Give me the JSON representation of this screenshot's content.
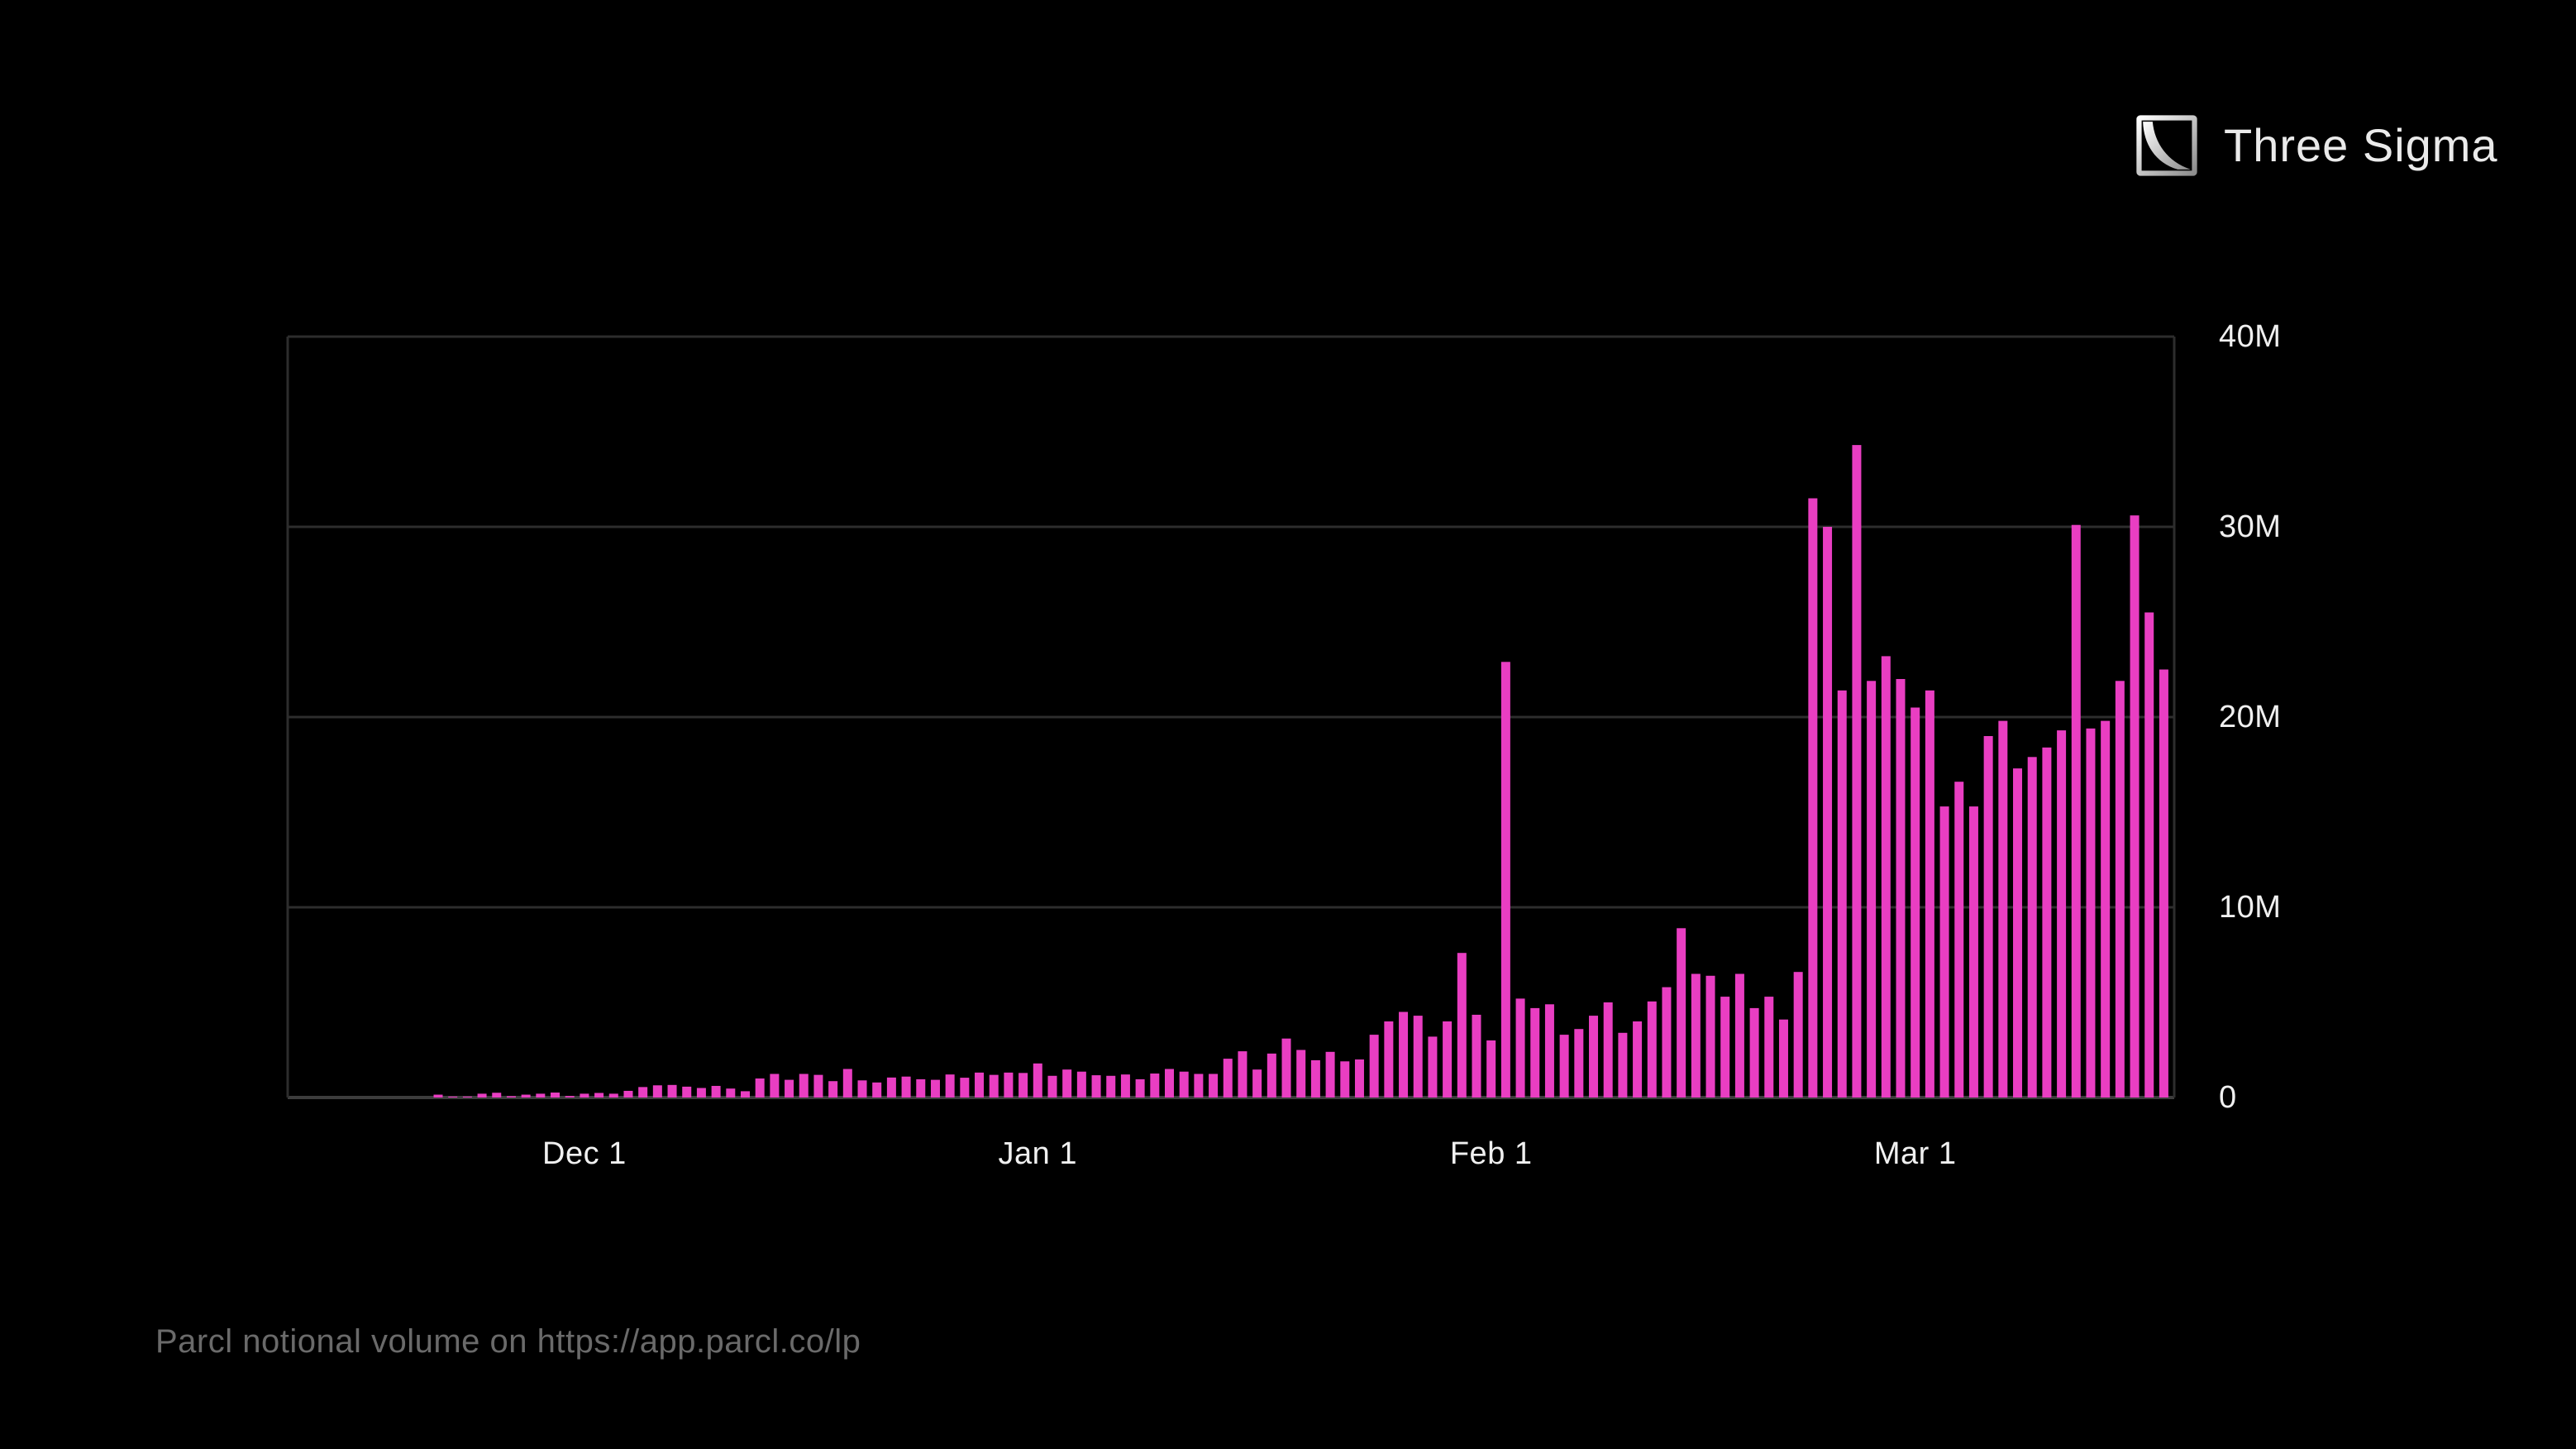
{
  "brand": {
    "name": "Three Sigma",
    "icon": "decay-curve-square-icon"
  },
  "caption": "Parcl notional volume on https://app.parcl.co/lp",
  "colors": {
    "background": "#000000",
    "bar": "#e93ec2",
    "grid": "#2d2d2d",
    "baseline": "#3c3c3c",
    "axis_label": "#f0f0f0",
    "caption_text": "#6a6a6a",
    "brand_text": "#eaeaea"
  },
  "chart_data": {
    "type": "bar",
    "title": "",
    "xlabel": "",
    "ylabel": "",
    "unit": "M",
    "ylim": [
      0,
      40
    ],
    "grid": "horizontal",
    "legend": "none",
    "y_ticks": [
      {
        "label": "40M",
        "value": 40
      },
      {
        "label": "30M",
        "value": 30
      },
      {
        "label": "20M",
        "value": 20
      },
      {
        "label": "10M",
        "value": 10
      },
      {
        "label": "0",
        "value": 0
      }
    ],
    "x_ticks": [
      {
        "label": "Dec 1",
        "index": 10
      },
      {
        "label": "Jan 1",
        "index": 41
      },
      {
        "label": "Feb 1",
        "index": 72
      },
      {
        "label": "Mar 1",
        "index": 101
      }
    ],
    "categories": [
      "Nov 21",
      "Nov 22",
      "Nov 23",
      "Nov 24",
      "Nov 25",
      "Nov 26",
      "Nov 27",
      "Nov 28",
      "Nov 29",
      "Nov 30",
      "Dec 1",
      "Dec 2",
      "Dec 3",
      "Dec 4",
      "Dec 5",
      "Dec 6",
      "Dec 7",
      "Dec 8",
      "Dec 9",
      "Dec 10",
      "Dec 11",
      "Dec 12",
      "Dec 13",
      "Dec 14",
      "Dec 15",
      "Dec 16",
      "Dec 17",
      "Dec 18",
      "Dec 19",
      "Dec 20",
      "Dec 21",
      "Dec 22",
      "Dec 23",
      "Dec 24",
      "Dec 25",
      "Dec 26",
      "Dec 27",
      "Dec 28",
      "Dec 29",
      "Dec 30",
      "Dec 31",
      "Jan 1",
      "Jan 2",
      "Jan 3",
      "Jan 4",
      "Jan 5",
      "Jan 6",
      "Jan 7",
      "Jan 8",
      "Jan 9",
      "Jan 10",
      "Jan 11",
      "Jan 12",
      "Jan 13",
      "Jan 14",
      "Jan 15",
      "Jan 16",
      "Jan 17",
      "Jan 18",
      "Jan 19",
      "Jan 20",
      "Jan 21",
      "Jan 22",
      "Jan 23",
      "Jan 24",
      "Jan 25",
      "Jan 26",
      "Jan 27",
      "Jan 28",
      "Jan 29",
      "Jan 30",
      "Jan 31",
      "Feb 1",
      "Feb 2",
      "Feb 3",
      "Feb 4",
      "Feb 5",
      "Feb 6",
      "Feb 7",
      "Feb 8",
      "Feb 9",
      "Feb 10",
      "Feb 11",
      "Feb 12",
      "Feb 13",
      "Feb 14",
      "Feb 15",
      "Feb 16",
      "Feb 17",
      "Feb 18",
      "Feb 19",
      "Feb 20",
      "Feb 21",
      "Feb 22",
      "Feb 23",
      "Feb 24",
      "Feb 25",
      "Feb 26",
      "Feb 27",
      "Feb 28",
      "Feb 29",
      "Mar 1",
      "Mar 2",
      "Mar 3",
      "Mar 4",
      "Mar 5",
      "Mar 6",
      "Mar 7",
      "Mar 8",
      "Mar 9",
      "Mar 10",
      "Mar 11",
      "Mar 12",
      "Mar 13",
      "Mar 14",
      "Mar 15",
      "Mar 16",
      "Mar 17",
      "Mar 18"
    ],
    "values": [
      0.15,
      0.05,
      0.05,
      0.2,
      0.25,
      0.07,
      0.15,
      0.2,
      0.26,
      0.08,
      0.2,
      0.24,
      0.2,
      0.35,
      0.55,
      0.64,
      0.66,
      0.57,
      0.5,
      0.61,
      0.47,
      0.33,
      1.0,
      1.24,
      0.93,
      1.24,
      1.19,
      0.86,
      1.5,
      0.9,
      0.79,
      1.05,
      1.1,
      0.96,
      0.93,
      1.21,
      1.04,
      1.31,
      1.19,
      1.31,
      1.29,
      1.79,
      1.14,
      1.47,
      1.36,
      1.17,
      1.14,
      1.21,
      0.96,
      1.26,
      1.5,
      1.36,
      1.24,
      1.24,
      2.04,
      2.43,
      1.47,
      2.31,
      3.1,
      2.5,
      1.96,
      2.4,
      1.9,
      2.0,
      3.3,
      4.0,
      4.5,
      4.3,
      3.2,
      4.0,
      7.6,
      4.35,
      3.0,
      22.9,
      5.2,
      4.7,
      4.9,
      3.3,
      3.6,
      4.3,
      5.0,
      3.4,
      4.0,
      5.05,
      5.8,
      8.9,
      6.5,
      6.4,
      5.3,
      6.5,
      4.7,
      5.3,
      4.1,
      6.6,
      31.5,
      30.0,
      21.4,
      34.3,
      21.9,
      23.2,
      22.0,
      20.5,
      21.4,
      15.3,
      16.6,
      15.3,
      19.0,
      19.8,
      17.3,
      17.9,
      18.4,
      19.3,
      30.1,
      19.4,
      19.8,
      21.9,
      30.6,
      25.5,
      22.5
    ]
  }
}
